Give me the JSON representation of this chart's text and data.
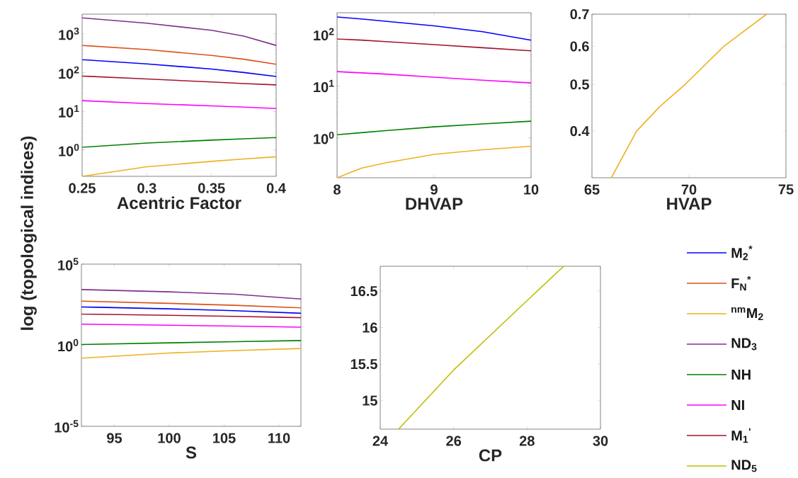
{
  "chart_data": [
    {
      "type": "line",
      "xlabel": "Acentric Factor",
      "log": "y",
      "legend": "right",
      "xlim": [
        0.25,
        0.4
      ],
      "ylim": [
        0.21,
        3200
      ],
      "xticks": [
        0.25,
        0.3,
        0.35,
        0.4
      ],
      "yticks": [
        {
          "value": 1,
          "label": "10$^{0}$"
        },
        {
          "value": 10,
          "label": "10$^{1}$"
        },
        {
          "value": 100,
          "label": "10$^{2}$"
        },
        {
          "value": 1000,
          "label": "10$^{3}$"
        }
      ],
      "x": [
        0.25,
        0.3,
        0.35,
        0.375,
        0.4
      ],
      "series": [
        {
          "name": "M$_{2}$$^{*}$",
          "color": "#0000ff",
          "values": [
            215,
            167,
            123,
            100,
            79
          ]
        },
        {
          "name": "F$_{N}$$^{*}$",
          "color": "#d95319",
          "values": [
            500,
            390,
            277,
            220,
            163
          ]
        },
        {
          "name": "$^{nm}$M$_{2}$",
          "color": "#edb120",
          "values": [
            0.21,
            0.37,
            0.51,
            0.59,
            0.67
          ]
        },
        {
          "name": "ND$_{3}$",
          "color": "#7e2f8e",
          "values": [
            2570,
            1870,
            1230,
            870,
            500
          ]
        },
        {
          "name": "NH",
          "color": "#008000",
          "values": [
            1.18,
            1.52,
            1.8,
            1.95,
            2.1
          ]
        },
        {
          "name": "NI",
          "color": "#ff00ff",
          "values": [
            18.8,
            15.8,
            13.8,
            12.8,
            11.8
          ]
        },
        {
          "name": "M$_{1}$$^{'}$",
          "color": "#a2142f",
          "values": [
            81,
            68,
            57,
            52,
            48
          ]
        }
      ]
    },
    {
      "type": "line",
      "xlabel": "DHVAP",
      "log": "y",
      "xlim": [
        8,
        10
      ],
      "ylim": [
        0.17,
        260
      ],
      "xticks": [
        8,
        9,
        10
      ],
      "yticks": [
        {
          "value": 1,
          "label": "10$^{0}$"
        },
        {
          "value": 10,
          "label": "10$^{1}$"
        },
        {
          "value": 100,
          "label": "10$^{2}$"
        }
      ],
      "x": [
        8,
        8.25,
        8.5,
        9,
        9.5,
        10
      ],
      "series": [
        {
          "color": "#0000ff",
          "values": [
            215,
            197,
            178,
            145,
            112,
            77
          ]
        },
        {
          "color": "#edb120",
          "values": [
            0.17,
            0.26,
            0.33,
            0.48,
            0.59,
            0.69
          ]
        },
        {
          "color": "#008000",
          "values": [
            1.15,
            1.26,
            1.38,
            1.63,
            1.86,
            2.1
          ]
        },
        {
          "color": "#ff00ff",
          "values": [
            19,
            18,
            17,
            14.8,
            13,
            11.5
          ]
        },
        {
          "color": "#a2142f",
          "values": [
            81,
            77,
            72,
            63,
            55,
            48
          ]
        }
      ]
    },
    {
      "type": "line",
      "xlabel": "HVAP",
      "log": "y",
      "xlim": [
        65,
        75
      ],
      "ylim": [
        0.32,
        0.7
      ],
      "xticks": [
        65,
        70,
        75
      ],
      "yticks": [
        0.4,
        0.5,
        0.6,
        0.7
      ],
      "x": [
        66,
        67.3,
        68.5,
        69.8,
        71.8,
        74
      ],
      "series": [
        {
          "color": "#edb120",
          "values": [
            0.32,
            0.4,
            0.45,
            0.5,
            0.6,
            0.7
          ]
        }
      ]
    },
    {
      "type": "line",
      "xlabel": "S",
      "ylabel": "log (topological indices)",
      "log": "y",
      "xlim": [
        92,
        112
      ],
      "ylim": [
        1e-05,
        100000
      ],
      "xticks": [
        95,
        100,
        105,
        110
      ],
      "yticks": [
        {
          "value": 1e-05,
          "label": "10$^{-5}$"
        },
        {
          "value": 1,
          "label": "10$^{0}$"
        },
        {
          "value": 100000,
          "label": "10$^{5}$"
        }
      ],
      "x": [
        92,
        100,
        106,
        112
      ],
      "series": [
        {
          "color": "#0000ff",
          "values": [
            230,
            175,
            135,
            93
          ]
        },
        {
          "color": "#d95319",
          "values": [
            525,
            380,
            290,
            200
          ]
        },
        {
          "color": "#edb120",
          "values": [
            0.16,
            0.33,
            0.47,
            0.63
          ]
        },
        {
          "color": "#7e2f8e",
          "values": [
            2700,
            1950,
            1400,
            710
          ]
        },
        {
          "color": "#008000",
          "values": [
            1.1,
            1.4,
            1.65,
            1.95
          ]
        },
        {
          "color": "#ff00ff",
          "values": [
            20,
            17,
            15,
            13
          ]
        },
        {
          "color": "#a2142f",
          "values": [
            83,
            70,
            60,
            50
          ]
        }
      ]
    },
    {
      "type": "line",
      "xlabel": "CP",
      "legend": "right",
      "xlim": [
        24,
        30
      ],
      "ylim": [
        14.61,
        16.84
      ],
      "xticks": [
        24,
        26,
        28,
        30
      ],
      "yticks": [
        15,
        15.5,
        16,
        16.5
      ],
      "x": [
        24.5,
        26,
        28,
        29
      ],
      "series": [
        {
          "name": "ND$_{5}$",
          "color": "#bfbf00",
          "values": [
            14.61,
            15.42,
            16.37,
            16.84
          ]
        }
      ]
    }
  ]
}
